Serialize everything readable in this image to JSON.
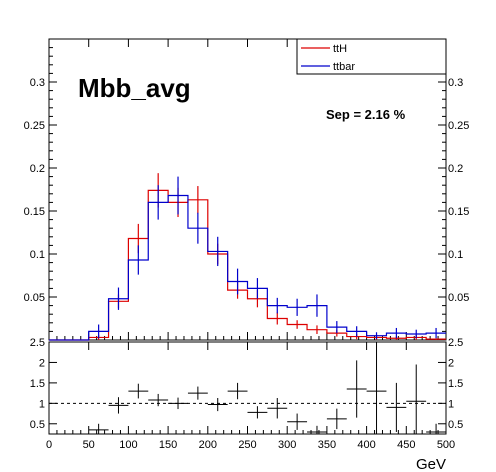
{
  "chart_data": [
    {
      "type": "histogram",
      "title": "Mbb_avg",
      "annotation": "Sep = 2.16 %",
      "xlabel": "GeV",
      "xlim": [
        0,
        500
      ],
      "ylim": [
        0,
        0.35
      ],
      "bin_edges": [
        0,
        25,
        50,
        75,
        100,
        125,
        150,
        175,
        200,
        225,
        250,
        275,
        300,
        325,
        350,
        375,
        400,
        425,
        450,
        475,
        500
      ],
      "yticks": [
        0.05,
        0.1,
        0.15,
        0.2,
        0.25,
        0.3
      ],
      "ytick_labels": [
        "0.05",
        "0.1",
        "0.15",
        "0.2",
        "0.25",
        "0.3"
      ],
      "legend": {
        "placement": "top-right"
      },
      "series": [
        {
          "name": "ttH",
          "color": "#dd0000",
          "values": [
            0.0,
            0.0,
            0.003,
            0.045,
            0.118,
            0.174,
            0.16,
            0.163,
            0.1,
            0.058,
            0.048,
            0.025,
            0.018,
            0.012,
            0.008,
            0.004,
            0.003,
            0.002,
            0.003,
            0.001
          ],
          "errors": [
            0.0,
            0.0,
            0.003,
            0.008,
            0.017,
            0.02,
            0.017,
            0.016,
            0.012,
            0.01,
            0.01,
            0.007,
            0.005,
            0.005,
            0.004,
            0.003,
            0.003,
            0.002,
            0.003,
            0.001
          ]
        },
        {
          "name": "ttbar",
          "color": "#0000cc",
          "values": [
            0.0,
            0.0,
            0.01,
            0.048,
            0.093,
            0.16,
            0.168,
            0.13,
            0.103,
            0.068,
            0.06,
            0.04,
            0.038,
            0.04,
            0.015,
            0.01,
            0.005,
            0.008,
            0.007,
            0.008
          ],
          "errors": [
            0.0,
            0.0,
            0.008,
            0.013,
            0.017,
            0.02,
            0.022,
            0.018,
            0.017,
            0.015,
            0.012,
            0.009,
            0.01,
            0.013,
            0.007,
            0.006,
            0.004,
            0.006,
            0.005,
            0.006
          ]
        }
      ]
    },
    {
      "type": "ratio",
      "xlim": [
        0,
        500
      ],
      "ylim": [
        0.25,
        2.5
      ],
      "xticks": [
        0,
        50,
        100,
        150,
        200,
        250,
        300,
        350,
        400,
        450,
        500
      ],
      "xtick_labels": [
        "0",
        "50",
        "100",
        "150",
        "200",
        "250",
        "300",
        "350",
        "400",
        "450",
        "500"
      ],
      "yticks": [
        0.5,
        1,
        1.5,
        2,
        2.5
      ],
      "ytick_labels": [
        "0.5",
        "1",
        "1.5",
        "2",
        "2.5"
      ],
      "reference_line": 1,
      "points": [
        {
          "x": 62.5,
          "y": 0.35,
          "yerr": 0.15
        },
        {
          "x": 87.5,
          "y": 0.95,
          "yerr": 0.2
        },
        {
          "x": 112.5,
          "y": 1.3,
          "yerr": 0.18
        },
        {
          "x": 137.5,
          "y": 1.08,
          "yerr": 0.15
        },
        {
          "x": 162.5,
          "y": 1.0,
          "yerr": 0.14
        },
        {
          "x": 187.5,
          "y": 1.25,
          "yerr": 0.16
        },
        {
          "x": 212.5,
          "y": 0.97,
          "yerr": 0.16
        },
        {
          "x": 237.5,
          "y": 1.3,
          "yerr": 0.2
        },
        {
          "x": 262.5,
          "y": 0.78,
          "yerr": 0.15
        },
        {
          "x": 287.5,
          "y": 0.88,
          "yerr": 0.25
        },
        {
          "x": 312.5,
          "y": 0.55,
          "yerr": 0.2
        },
        {
          "x": 337.5,
          "y": 0.3,
          "yerr": 0.15
        },
        {
          "x": 362.5,
          "y": 0.62,
          "yerr": 0.25
        },
        {
          "x": 387.5,
          "y": 1.35,
          "yerr": 0.7
        },
        {
          "x": 412.5,
          "y": 1.3,
          "yerr": 1.2
        },
        {
          "x": 437.5,
          "y": 0.9,
          "yerr": 0.6
        },
        {
          "x": 462.5,
          "y": 1.05,
          "yerr": 0.9
        },
        {
          "x": 487.5,
          "y": 0.3,
          "yerr": 0.2
        }
      ]
    }
  ]
}
